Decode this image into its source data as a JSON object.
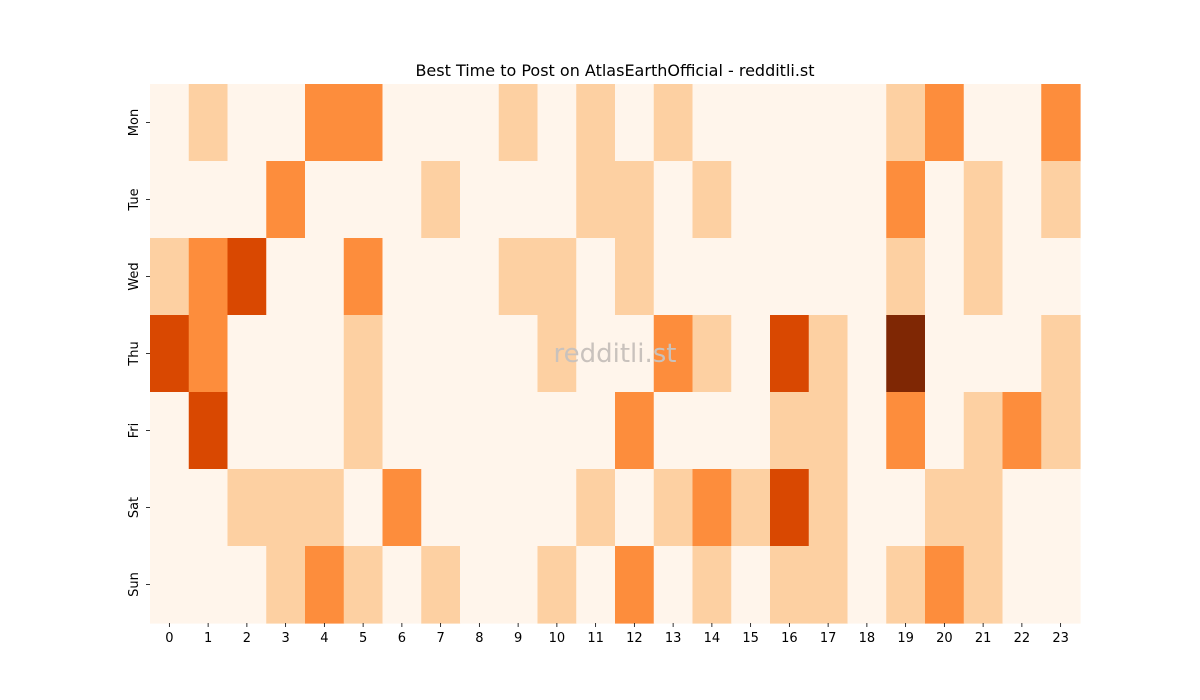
{
  "chart_data": {
    "type": "heatmap",
    "title": "Best Time to Post on AtlasEarthOfficial - redditli.st",
    "xlabel": "",
    "ylabel": "",
    "x": [
      "0",
      "1",
      "2",
      "3",
      "4",
      "5",
      "6",
      "7",
      "8",
      "9",
      "10",
      "11",
      "12",
      "13",
      "14",
      "15",
      "16",
      "17",
      "18",
      "19",
      "20",
      "21",
      "22",
      "23"
    ],
    "y": [
      "Mon",
      "Tue",
      "Wed",
      "Thu",
      "Fri",
      "Sat",
      "Sun"
    ],
    "values": [
      [
        0,
        1,
        0,
        0,
        2,
        2,
        0,
        0,
        0,
        1,
        0,
        1,
        0,
        1,
        0,
        0,
        0,
        0,
        0,
        1,
        2,
        0,
        0,
        2
      ],
      [
        0,
        0,
        0,
        2,
        0,
        0,
        0,
        1,
        0,
        0,
        0,
        1,
        1,
        0,
        1,
        0,
        0,
        0,
        0,
        2,
        0,
        1,
        0,
        1
      ],
      [
        1,
        2,
        3,
        0,
        0,
        2,
        0,
        0,
        0,
        1,
        1,
        0,
        1,
        0,
        0,
        0,
        0,
        0,
        0,
        1,
        0,
        1,
        0,
        0
      ],
      [
        3,
        2,
        0,
        0,
        0,
        1,
        0,
        0,
        0,
        0,
        1,
        0,
        0,
        2,
        1,
        0,
        3,
        1,
        0,
        4,
        0,
        0,
        0,
        1
      ],
      [
        0,
        3,
        0,
        0,
        0,
        1,
        0,
        0,
        0,
        0,
        0,
        0,
        2,
        0,
        0,
        0,
        1,
        1,
        0,
        2,
        0,
        1,
        2,
        1
      ],
      [
        0,
        0,
        1,
        1,
        1,
        0,
        2,
        0,
        0,
        0,
        0,
        1,
        0,
        1,
        2,
        1,
        3,
        1,
        0,
        0,
        1,
        1,
        0,
        0
      ],
      [
        0,
        0,
        0,
        1,
        2,
        1,
        0,
        1,
        0,
        0,
        1,
        0,
        2,
        0,
        1,
        0,
        1,
        1,
        0,
        1,
        2,
        1,
        0,
        0
      ]
    ],
    "colormap": "Oranges",
    "level_colors": [
      "#fff5eb",
      "#fdd0a2",
      "#fd8d3c",
      "#d94801",
      "#7f2704"
    ],
    "colorbar": false,
    "grid": false,
    "watermark": "redditli.st"
  }
}
